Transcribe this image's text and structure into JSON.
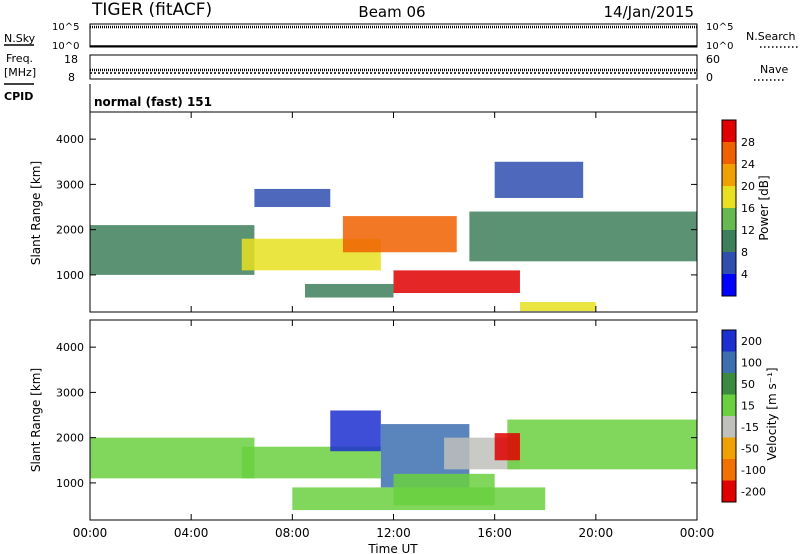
{
  "header": {
    "radar": "TIGER (fitACF)",
    "beam": "Beam 06",
    "date": "14/Jan/2015"
  },
  "strips": {
    "nsky": {
      "label": "N.Sky",
      "ticks": [
        "10^5",
        "10^0"
      ],
      "right_ticks": [
        "10^5",
        "10^0"
      ],
      "right_label": "N.Search"
    },
    "freq": {
      "label_line1": "Freq.",
      "label_line2": "[MHz]",
      "ticks": [
        "18",
        "8"
      ],
      "right_ticks": [
        "60",
        "0"
      ],
      "right_label": "Nave"
    },
    "cpid": {
      "label": "CPID",
      "text": "normal (fast) 151"
    }
  },
  "axes": {
    "ylabel": "Slant Range [km]",
    "xlabel": "Time UT",
    "yticks": [
      "1000",
      "2000",
      "3000",
      "4000"
    ],
    "xticks": [
      "00:00",
      "04:00",
      "08:00",
      "12:00",
      "16:00",
      "20:00",
      "00:00"
    ]
  },
  "colorbars": {
    "power": {
      "label": "Power [dB]",
      "ticks": [
        "4",
        "8",
        "12",
        "16",
        "20",
        "24",
        "28"
      ],
      "colors": [
        "#0000ff",
        "#2f4fb0",
        "#3d7f5a",
        "#66b850",
        "#e8e020",
        "#f0a000",
        "#f06000",
        "#e00000"
      ]
    },
    "velocity": {
      "label": "Velocity [m s⁻¹]",
      "ticks": [
        "200",
        "100",
        "50",
        "15",
        "-15",
        "-50",
        "-100",
        "-200"
      ],
      "colors": [
        "#1c2fd0",
        "#3d6fb0",
        "#3a8a40",
        "#6ad040",
        "#c0c0bc",
        "#f0a000",
        "#f07000",
        "#e00000"
      ]
    }
  },
  "chart_data": [
    {
      "type": "heatmap",
      "title": "Power",
      "xlabel": "Time UT",
      "ylabel": "Slant Range [km]",
      "xlim": [
        0,
        24
      ],
      "ylim": [
        180,
        4600
      ],
      "zlim": [
        0,
        30
      ],
      "zlabel": "Power [dB]",
      "echo_regions": [
        {
          "time_start": 0.0,
          "time_end": 6.5,
          "range_low": 1000,
          "range_high": 2100,
          "power": 8
        },
        {
          "time_start": 6.0,
          "time_end": 11.5,
          "range_low": 1100,
          "range_high": 1800,
          "power": 16
        },
        {
          "time_start": 6.5,
          "time_end": 9.5,
          "range_low": 2500,
          "range_high": 2900,
          "power": 6
        },
        {
          "time_start": 10.0,
          "time_end": 14.5,
          "range_low": 1500,
          "range_high": 2300,
          "power": 24
        },
        {
          "time_start": 12.0,
          "time_end": 17.0,
          "range_low": 600,
          "range_high": 1100,
          "power": 28
        },
        {
          "time_start": 8.5,
          "time_end": 12.0,
          "range_low": 500,
          "range_high": 800,
          "power": 10
        },
        {
          "time_start": 15.0,
          "time_end": 24.0,
          "range_low": 1300,
          "range_high": 2400,
          "power": 10
        },
        {
          "time_start": 16.0,
          "time_end": 19.5,
          "range_low": 2700,
          "range_high": 3500,
          "power": 5
        },
        {
          "time_start": 17.0,
          "time_end": 20.0,
          "range_low": 200,
          "range_high": 400,
          "power": 18
        }
      ]
    },
    {
      "type": "heatmap",
      "title": "Velocity",
      "xlabel": "Time UT",
      "ylabel": "Slant Range [km]",
      "xlim": [
        0,
        24
      ],
      "ylim": [
        180,
        4600
      ],
      "zlim": [
        -200,
        200
      ],
      "zlabel": "Velocity [m s-1]",
      "echo_regions": [
        {
          "time_start": 0.0,
          "time_end": 6.5,
          "range_low": 1100,
          "range_high": 2000,
          "velocity": 0
        },
        {
          "time_start": 6.0,
          "time_end": 11.5,
          "range_low": 1100,
          "range_high": 1800,
          "velocity": 0
        },
        {
          "time_start": 9.5,
          "time_end": 11.5,
          "range_low": 1700,
          "range_high": 2600,
          "velocity": 180
        },
        {
          "time_start": 11.5,
          "time_end": 15.0,
          "range_low": 900,
          "range_high": 2300,
          "velocity": 120
        },
        {
          "time_start": 12.0,
          "time_end": 16.0,
          "range_low": 500,
          "range_high": 1200,
          "velocity": 30
        },
        {
          "time_start": 14.0,
          "time_end": 17.0,
          "range_low": 1300,
          "range_high": 2000,
          "velocity": -40
        },
        {
          "time_start": 8.0,
          "time_end": 18.0,
          "range_low": 400,
          "range_high": 900,
          "velocity": 0
        },
        {
          "time_start": 16.5,
          "time_end": 24.0,
          "range_low": 1300,
          "range_high": 2400,
          "velocity": 0
        },
        {
          "time_start": 16.0,
          "time_end": 17.0,
          "range_low": 1500,
          "range_high": 2100,
          "velocity": -180
        }
      ]
    }
  ]
}
